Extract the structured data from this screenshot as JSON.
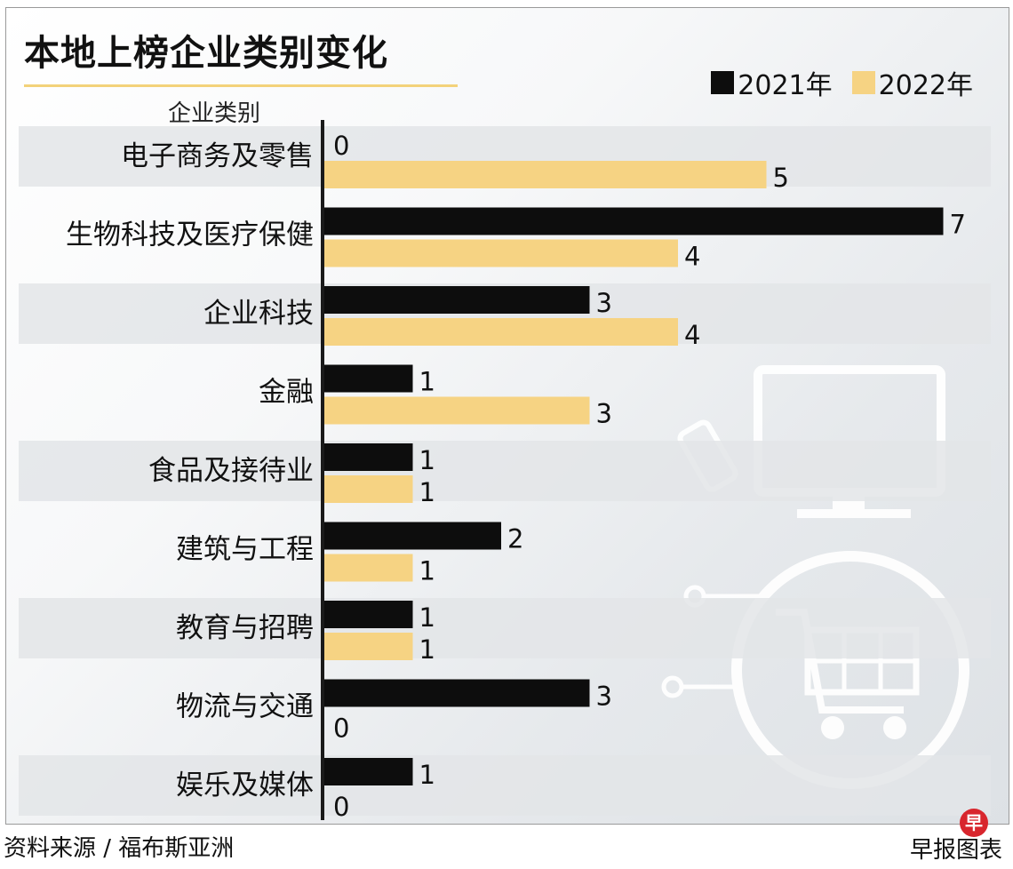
{
  "title": "本地上榜企业类别变化",
  "category_header": "企业类别",
  "legend": [
    {
      "label": "2021年",
      "color": "#0d0d0d"
    },
    {
      "label": "2022年",
      "color": "#f6d383"
    }
  ],
  "footer": {
    "source": "资料来源 / 福布斯亚洲",
    "credit": "早报图表",
    "logo_char": "早"
  },
  "chart_data": {
    "type": "bar",
    "orientation": "horizontal",
    "categories": [
      "电子商务及零售",
      "生物科技及医疗保健",
      "企业科技",
      "金融",
      "食品及接待业",
      "建筑与工程",
      "教育与招聘",
      "物流与交通",
      "娱乐及媒体"
    ],
    "series": [
      {
        "name": "2021年",
        "values": [
          0,
          7,
          3,
          1,
          1,
          2,
          1,
          3,
          1
        ],
        "color": "#0d0d0d"
      },
      {
        "name": "2022年",
        "values": [
          5,
          4,
          4,
          3,
          1,
          1,
          1,
          0,
          0
        ],
        "color": "#f6d383"
      }
    ],
    "xlim": [
      0,
      7
    ],
    "grid": false,
    "legend_position": "top-right",
    "decoration_icons": [
      "phone-icon",
      "monitor-icon",
      "shopping-cart-icon"
    ]
  }
}
